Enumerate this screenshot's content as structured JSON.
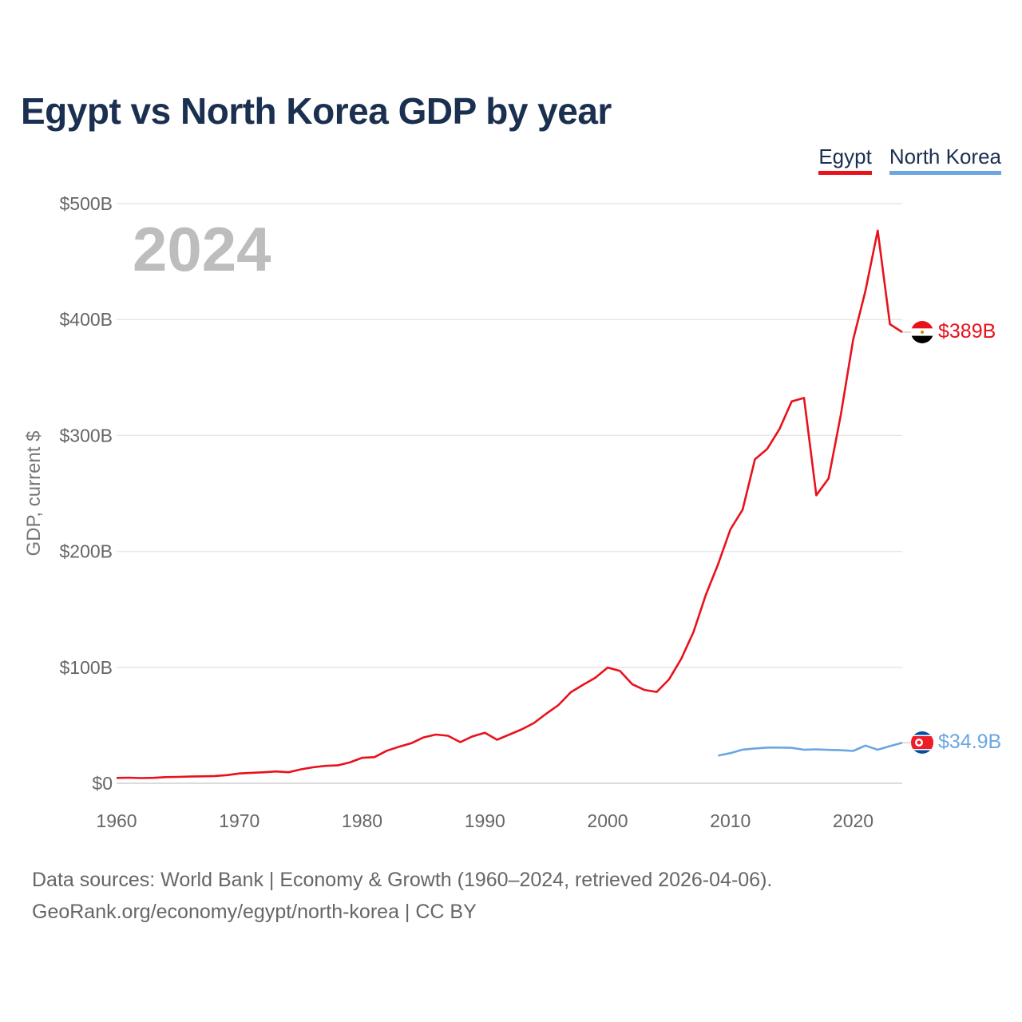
{
  "title": "Egypt vs North Korea GDP by year",
  "legend": [
    {
      "label": "Egypt",
      "color": "#e8111c"
    },
    {
      "label": "North Korea",
      "color": "#6ca6e0"
    }
  ],
  "footer": {
    "line1": "Data sources: World Bank | Economy & Growth (1960–2024, retrieved 2026-04-06).",
    "line2": "GeoRank.org/economy/egypt/north-korea | CC BY"
  },
  "chart_data": {
    "type": "line",
    "title": "Egypt vs North Korea GDP by year",
    "ylabel": "GDP, current $",
    "xlabel": "",
    "year_display": "2024",
    "xlim": [
      1960,
      2024
    ],
    "ylim": [
      0,
      500
    ],
    "y_unit": "billion USD",
    "grid": true,
    "legend_position": "top-right",
    "x_ticks": [
      1960,
      1970,
      1980,
      1990,
      2000,
      2010,
      2020
    ],
    "x_tick_labels": [
      "1960",
      "1970",
      "1980",
      "1990",
      "2000",
      "2010",
      "2020"
    ],
    "y_ticks": [
      0,
      100,
      200,
      300,
      400,
      500
    ],
    "y_tick_labels": [
      "$0",
      "$100B",
      "$200B",
      "$300B",
      "$400B",
      "$500B"
    ],
    "series": [
      {
        "name": "Egypt",
        "color": "#e8111c",
        "end_label": "$389B",
        "points": [
          [
            1960,
            4.6
          ],
          [
            1961,
            4.8
          ],
          [
            1962,
            4.5
          ],
          [
            1963,
            4.7
          ],
          [
            1964,
            5.3
          ],
          [
            1965,
            5.5
          ],
          [
            1966,
            5.8
          ],
          [
            1967,
            6.0
          ],
          [
            1968,
            6.3
          ],
          [
            1969,
            7.0
          ],
          [
            1970,
            8.5
          ],
          [
            1971,
            9.0
          ],
          [
            1972,
            9.5
          ],
          [
            1973,
            10.2
          ],
          [
            1974,
            9.5
          ],
          [
            1975,
            12.0
          ],
          [
            1976,
            13.8
          ],
          [
            1977,
            15.0
          ],
          [
            1978,
            15.4
          ],
          [
            1979,
            18.0
          ],
          [
            1980,
            22.0
          ],
          [
            1981,
            22.5
          ],
          [
            1982,
            28.0
          ],
          [
            1983,
            31.5
          ],
          [
            1984,
            34.5
          ],
          [
            1985,
            39.5
          ],
          [
            1986,
            42.0
          ],
          [
            1987,
            41.0
          ],
          [
            1988,
            35.5
          ],
          [
            1989,
            40.5
          ],
          [
            1990,
            43.5
          ],
          [
            1991,
            37.5
          ],
          [
            1992,
            42.0
          ],
          [
            1993,
            46.5
          ],
          [
            1994,
            52.0
          ],
          [
            1995,
            60.0
          ],
          [
            1996,
            67.5
          ],
          [
            1997,
            78.5
          ],
          [
            1998,
            85.0
          ],
          [
            1999,
            91.0
          ],
          [
            2000,
            99.8
          ],
          [
            2001,
            97.0
          ],
          [
            2002,
            85.5
          ],
          [
            2003,
            80.5
          ],
          [
            2004,
            78.8
          ],
          [
            2005,
            89.6
          ],
          [
            2006,
            107.5
          ],
          [
            2007,
            130.5
          ],
          [
            2008,
            162.5
          ],
          [
            2009,
            189.0
          ],
          [
            2010,
            219.0
          ],
          [
            2011,
            236.0
          ],
          [
            2012,
            279.4
          ],
          [
            2013,
            288.4
          ],
          [
            2014,
            305.6
          ],
          [
            2015,
            329.4
          ],
          [
            2016,
            332.4
          ],
          [
            2017,
            248.4
          ],
          [
            2018,
            263.0
          ],
          [
            2019,
            317.9
          ],
          [
            2020,
            382.5
          ],
          [
            2021,
            424.7
          ],
          [
            2022,
            476.7
          ],
          [
            2023,
            396.0
          ],
          [
            2024,
            389.1
          ]
        ]
      },
      {
        "name": "North Korea",
        "color": "#6ca6e0",
        "end_label": "$34.9B",
        "points": [
          [
            2009,
            23.8
          ],
          [
            2010,
            26.0
          ],
          [
            2011,
            29.0
          ],
          [
            2012,
            30.0
          ],
          [
            2013,
            30.8
          ],
          [
            2014,
            30.8
          ],
          [
            2015,
            30.6
          ],
          [
            2016,
            28.9
          ],
          [
            2017,
            29.3
          ],
          [
            2018,
            28.8
          ],
          [
            2019,
            28.5
          ],
          [
            2020,
            27.9
          ],
          [
            2021,
            32.5
          ],
          [
            2022,
            28.9
          ],
          [
            2023,
            32.0
          ],
          [
            2024,
            34.9
          ]
        ]
      }
    ]
  }
}
